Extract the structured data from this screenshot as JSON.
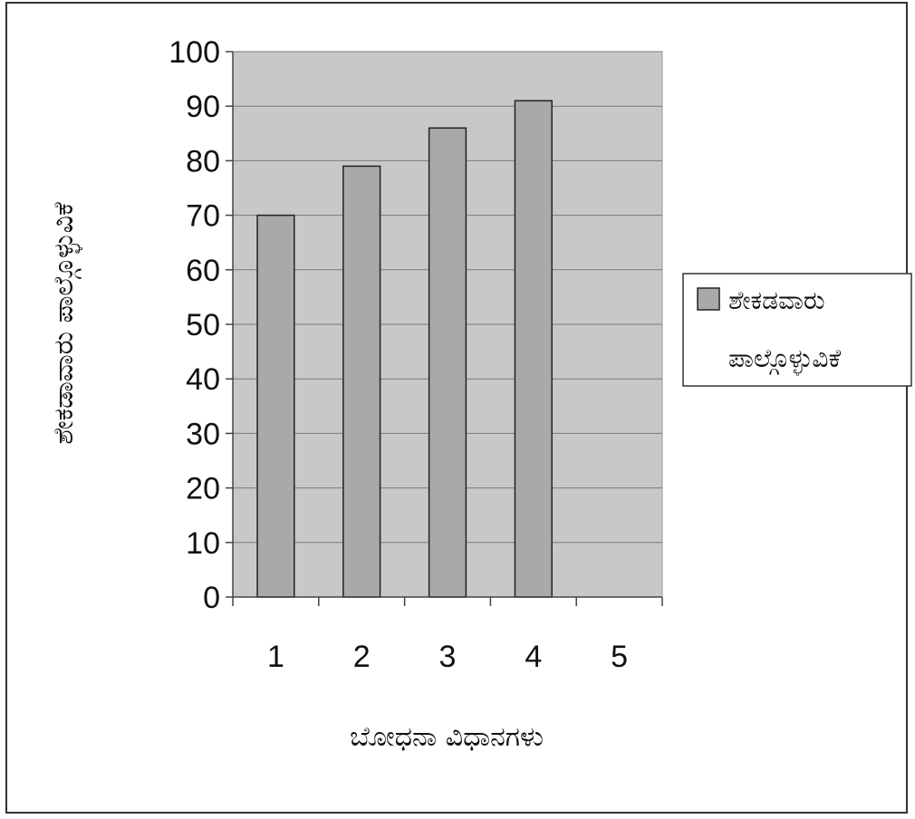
{
  "chart_data": {
    "type": "bar",
    "categories": [
      "1",
      "2",
      "3",
      "4",
      "5"
    ],
    "series": [
      {
        "name": "ಶೇಕಡವಾರು ಪಾಲ್ಗೊಳ್ಳುವಿಕೆ",
        "values": [
          70,
          79,
          86,
          91,
          null
        ]
      }
    ],
    "title": "",
    "xlabel": "ಬೋಧನಾ ವಿಧಾನಗಳು",
    "ylabel": "ಶೇಕಡಾವಾರು ಪಾಲ್ಗೊಳ್ಳುವಿಕೆ",
    "ylim": [
      0,
      100
    ],
    "yticks": [
      0,
      10,
      20,
      30,
      40,
      50,
      60,
      70,
      80,
      90,
      100
    ],
    "grid": true,
    "legend_position": "right",
    "legend_lines": [
      "ಶೇಕಡವಾರು",
      "ಪಾಲ್ಗೊಳ್ಳುವಿಕೆ"
    ],
    "colors": {
      "plot_background": "#c8c8c8",
      "bar_fill": "#a9a9a9",
      "bar_stroke": "#222222",
      "gridline": "#7a7a7a"
    }
  }
}
